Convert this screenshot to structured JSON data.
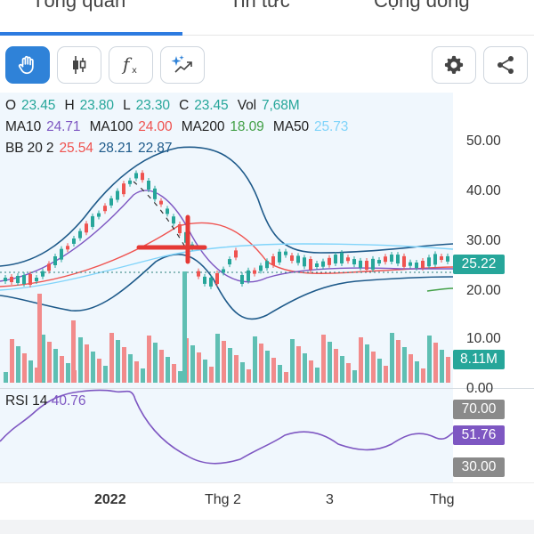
{
  "tabs": [
    {
      "label": "Tổng quan"
    },
    {
      "label": "Tin tức"
    },
    {
      "label": "Cộng đồng"
    }
  ],
  "toolbar": {
    "buttons": [
      {
        "icon": "hand-icon",
        "active": true
      },
      {
        "icon": "candlestick-icon",
        "active": false
      },
      {
        "icon": "function-icon",
        "active": false
      },
      {
        "icon": "ai-sparkle-icon",
        "active": false
      },
      {
        "icon": "gear-icon",
        "active": false
      },
      {
        "icon": "share-icon",
        "active": false
      }
    ]
  },
  "ohlc": {
    "o_label": "O",
    "o": "23.45",
    "h_label": "H",
    "h": "23.80",
    "l_label": "L",
    "l": "23.30",
    "c_label": "C",
    "c": "23.45",
    "vol_label": "Vol",
    "vol": "7,68M"
  },
  "ma": {
    "ma10_label": "MA10",
    "ma10": "24.71",
    "ma100_label": "MA100",
    "ma100": "24.00",
    "ma200_label": "MA200",
    "ma200": "18.09",
    "ma50_label": "MA50",
    "ma50": "25.73"
  },
  "bb": {
    "label": "BB 20 2",
    "mid": "25.54",
    "upper": "28.21",
    "lower": "22.87"
  },
  "rsi": {
    "label": "RSI 14",
    "value": "40.76"
  },
  "price_axis": {
    "ticks": [
      "50.00",
      "40.00",
      "30.00",
      "20.00",
      "10.00",
      "0.00"
    ],
    "last_price": "25.22",
    "last_volume": "8.11M"
  },
  "rsi_axis": {
    "upper": "70.00",
    "current": "51.76",
    "lower": "30.00"
  },
  "x_axis": {
    "ticks": [
      "2022",
      "Thg 2",
      "3",
      "Thg"
    ]
  },
  "colors": {
    "up": "#26a69a",
    "down": "#ef5350",
    "rsi_line": "#7e57c2",
    "bb_band": "#1e5a8a",
    "ma10": "#7e57c2",
    "ma100": "#ef5350",
    "ma200": "#43a047",
    "ma50": "#81d4fa",
    "accent": "#2f82d8"
  }
}
